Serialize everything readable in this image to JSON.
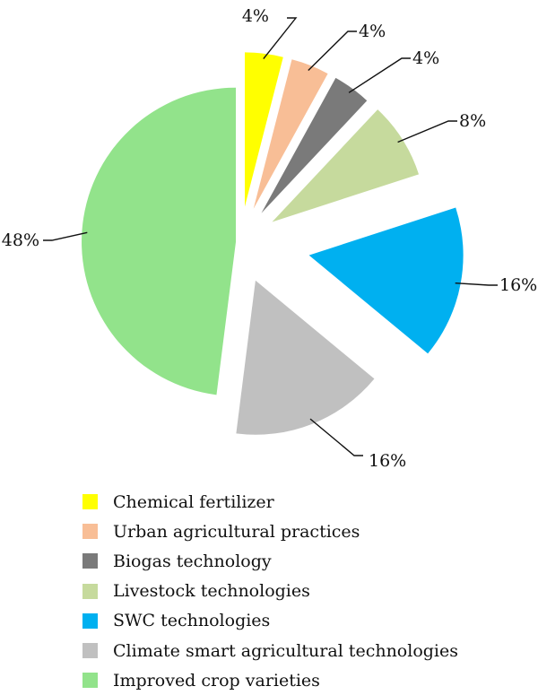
{
  "chart_data": {
    "type": "pie",
    "title": "",
    "slices": [
      {
        "label": "Chemical fertilizer",
        "value": 4,
        "display": "4%",
        "color": "#ffff00"
      },
      {
        "label": "Urban agricultural practices",
        "value": 4,
        "display": "4%",
        "color": "#f8be96"
      },
      {
        "label": "Biogas technology",
        "value": 4,
        "display": "4%",
        "color": "#7a7a7a"
      },
      {
        "label": "Livestock technologies",
        "value": 8,
        "display": "8%",
        "color": "#c6da9d"
      },
      {
        "label": "SWC technologies",
        "value": 16,
        "display": "16%",
        "color": "#00b0f0"
      },
      {
        "label": "Climate smart agricultural technologies",
        "value": 16,
        "display": "16%",
        "color": "#c0c0c0"
      },
      {
        "label": "Improved crop varieties",
        "value": 48,
        "display": "48%",
        "color": "#92e38b"
      }
    ],
    "legend": "bottom",
    "exploded": true
  }
}
